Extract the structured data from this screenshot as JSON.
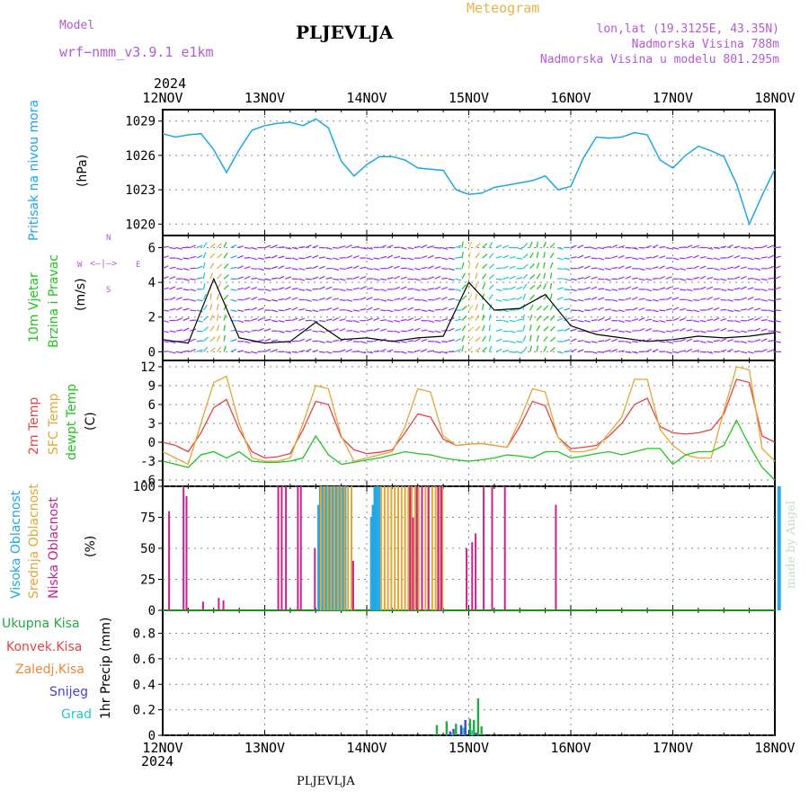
{
  "header": {
    "model_label": "Model",
    "model_name": "wrf−nmm_v3.9.1  e1km",
    "station": "PLJEVLJA",
    "meteogram": "Meteogram",
    "lonlat": "lon,lat (19.3125E, 43.35N)",
    "elev": "Nadmorska Visina 788m",
    "elev_model": "Nadmorska Visina u modelu 801.295m",
    "year_top": "2024",
    "year_bottom": "2024",
    "footer_station": "PLJEVLJA",
    "credit": "made by Angel"
  },
  "colors": {
    "pressure": "#1fa6e6",
    "temp2m": "#e44444",
    "sfc": "#e0a838",
    "dew": "#22c322",
    "high_cloud": "#22a6e6",
    "mid_cloud": "#e0a838",
    "low_cloud": "#c8228e",
    "precip_total": "#22aa44",
    "precip_conv": "#e44444",
    "precip_frz": "#ee8833",
    "snow": "#4444cc",
    "grad": "#22c8c8",
    "label_purple": "#b45ad6"
  },
  "axes": {
    "dates": [
      "12NOV",
      "13NOV",
      "14NOV",
      "15NOV",
      "16NOV",
      "17NOV",
      "18NOV"
    ]
  },
  "chart_data": [
    {
      "type": "line",
      "panel": "pressure",
      "ylabel": "Pritisak na nivou mora",
      "unit": "(hPa)",
      "yticks": [
        1020,
        1023,
        1026,
        1029
      ],
      "ylim": [
        1019,
        1030
      ],
      "x_hours": [
        0,
        3,
        6,
        9,
        12,
        15,
        18,
        21,
        24,
        27,
        30,
        33,
        36,
        39,
        42,
        45,
        48,
        51,
        54,
        57,
        60,
        63,
        66,
        69,
        72,
        75,
        78,
        81,
        84,
        87,
        90,
        93,
        96,
        99,
        102,
        105,
        108,
        111,
        114,
        117,
        120,
        123,
        126,
        129,
        132,
        135,
        138,
        141,
        144
      ],
      "values": [
        1027.9,
        1027.6,
        1027.8,
        1027.9,
        1026.5,
        1024.5,
        1026.5,
        1028.2,
        1028.6,
        1028.8,
        1028.9,
        1028.6,
        1029.2,
        1028.4,
        1025.5,
        1024.2,
        1025.2,
        1025.9,
        1025.9,
        1025.6,
        1024.9,
        1024.8,
        1024.7,
        1023.0,
        1022.6,
        1022.7,
        1023.2,
        1023.4,
        1023.6,
        1023.8,
        1024.2,
        1023.0,
        1023.3,
        1025.8,
        1027.6,
        1027.5,
        1027.6,
        1028.0,
        1027.8,
        1025.6,
        1024.9,
        1026.0,
        1026.8,
        1026.4,
        1025.9,
        1023.5,
        1020.0,
        1022.5,
        1024.8
      ]
    },
    {
      "type": "line",
      "panel": "wind",
      "ylabel": "10m Vjetar Brzina i Pravac",
      "unit": "(m/s)",
      "legend_compass": [
        "N",
        "W",
        "E",
        "S"
      ],
      "yticks": [
        0,
        2,
        4,
        6
      ],
      "ylim": [
        -0.5,
        6.7
      ],
      "x_hours": [
        0,
        6,
        12,
        18,
        24,
        30,
        36,
        42,
        48,
        54,
        60,
        66,
        72,
        78,
        84,
        90,
        96,
        102,
        108,
        114,
        120,
        126,
        132,
        138,
        144
      ],
      "values": [
        0.7,
        0.5,
        4.2,
        0.8,
        0.5,
        0.6,
        1.7,
        0.7,
        0.8,
        0.6,
        0.8,
        0.9,
        4.0,
        2.4,
        2.5,
        3.3,
        1.5,
        1.0,
        0.8,
        0.6,
        0.7,
        0.9,
        0.8,
        0.9,
        1.1
      ]
    },
    {
      "type": "line",
      "panel": "temperature",
      "ylabel": "2m Temp / SFC Temp / dewpt Temp",
      "unit": "(C)",
      "yticks": [
        -6,
        -3,
        0,
        3,
        6,
        9,
        12
      ],
      "ylim": [
        -7,
        13
      ],
      "x_hours": [
        0,
        3,
        6,
        9,
        12,
        15,
        18,
        21,
        24,
        27,
        30,
        33,
        36,
        39,
        42,
        45,
        48,
        51,
        54,
        57,
        60,
        63,
        66,
        69,
        72,
        75,
        78,
        81,
        84,
        87,
        90,
        93,
        96,
        99,
        102,
        105,
        108,
        111,
        114,
        117,
        120,
        123,
        126,
        129,
        132,
        135,
        138,
        141,
        144
      ],
      "series": [
        {
          "name": "2m Temp",
          "values": [
            0,
            -0.5,
            -1.5,
            1.5,
            5.5,
            6.8,
            2,
            -1.5,
            -2.5,
            -2.3,
            -1.8,
            2,
            6.5,
            6,
            0.8,
            -1.2,
            -1.8,
            -1.6,
            -1.2,
            1.5,
            4.5,
            4,
            0.5,
            -0.5,
            -0.3,
            -0.2,
            -0.5,
            -0.8,
            2.5,
            6.5,
            5.8,
            0.8,
            -1,
            -0.8,
            -0.5,
            1,
            3,
            6,
            7,
            2.5,
            1.5,
            1.3,
            1.5,
            2,
            4.5,
            10,
            9.5,
            1,
            0
          ]
        },
        {
          "name": "SFC Temp",
          "values": [
            -1.5,
            -2.5,
            -3.5,
            3,
            9.5,
            10.5,
            3,
            -2.5,
            -3,
            -3,
            -2.5,
            3,
            9,
            8.5,
            1,
            -3,
            -2.5,
            -2,
            -1.5,
            2.5,
            8.5,
            8,
            1,
            -0.5,
            -0.3,
            -0.2,
            -0.5,
            -0.8,
            3.5,
            8.5,
            8,
            0.8,
            -1.5,
            -1.5,
            -1,
            1.5,
            4,
            10,
            10,
            2,
            -0.5,
            -2,
            -2.5,
            -2.5,
            5,
            12,
            11.5,
            -1,
            -3
          ]
        },
        {
          "name": "dewpt Temp",
          "values": [
            -3,
            -3.5,
            -4,
            -2,
            -1.5,
            -2.5,
            -1.5,
            -3,
            -3.2,
            -3.2,
            -3,
            -2.5,
            1,
            -2,
            -3.5,
            -3.2,
            -2.8,
            -2.5,
            -2,
            -1.5,
            -1.8,
            -2,
            -2.5,
            -2.8,
            -3,
            -2.8,
            -2.5,
            -2,
            -2.2,
            -2.5,
            -1.5,
            -1.5,
            -2.5,
            -2.2,
            -1.8,
            -1.5,
            -2,
            -1.5,
            -1,
            -1,
            -3.5,
            -2,
            -1.5,
            -1.5,
            -0.5,
            3.5,
            -0.5,
            -4,
            -6
          ]
        }
      ]
    },
    {
      "type": "bar",
      "panel": "cloud",
      "ylabel": "Visoka Oblacnost / Srednja Oblacnost / Niska Oblacnost",
      "unit": "(%)",
      "yticks": [
        0,
        25,
        50,
        75,
        100
      ],
      "ylim": [
        0,
        100
      ],
      "series": [
        {
          "name": "Visoka Oblacnost",
          "x_hours": [
            36.6,
            37,
            37.4,
            37.8,
            38.2,
            38.6,
            39,
            39.4,
            39.8,
            40.2,
            40.6,
            41,
            41.4,
            41.8,
            42.2,
            42.6,
            43,
            49,
            49.4,
            49.8,
            50.2,
            50.6,
            51,
            144.8,
            145.2
          ],
          "values": [
            85,
            100,
            100,
            100,
            100,
            100,
            100,
            100,
            100,
            100,
            100,
            100,
            100,
            100,
            100,
            100,
            100,
            75,
            85,
            100,
            100,
            100,
            100,
            100,
            100
          ]
        },
        {
          "name": "Srednja Oblacnost",
          "x_hours": [
            37.2,
            38,
            38.8,
            39.6,
            40.4,
            41.2,
            42,
            42.8,
            43.6,
            44.4,
            51.4,
            52.2,
            53,
            53.8,
            54.6,
            55.4,
            56.2,
            57,
            57.8,
            58.6,
            59.4,
            60.2,
            61,
            61.8,
            62.6,
            63.4,
            64.2,
            65,
            65.8
          ],
          "values": [
            100,
            100,
            100,
            100,
            100,
            100,
            100,
            100,
            100,
            100,
            100,
            100,
            100,
            100,
            100,
            100,
            100,
            100,
            100,
            100,
            100,
            100,
            100,
            100,
            100,
            100,
            100,
            100,
            100
          ]
        },
        {
          "name": "Niska Oblacnost",
          "x_hours": [
            1.5,
            4.9,
            5.6,
            9.5,
            13.2,
            14.3,
            27.2,
            28,
            29,
            31.8,
            32.5,
            35.8,
            44.8,
            58.2,
            58.9,
            59.8,
            61,
            62.5,
            64.8,
            65.5,
            71.5,
            72.8,
            73.6,
            75.5,
            77.5,
            80.5,
            92.5
          ],
          "values": [
            80,
            100,
            92,
            7,
            10,
            8,
            100,
            100,
            100,
            100,
            100,
            50,
            40,
            100,
            75,
            100,
            100,
            100,
            100,
            100,
            50,
            55,
            62,
            100,
            100,
            100,
            85
          ]
        }
      ]
    },
    {
      "type": "bar",
      "panel": "precip",
      "ylabel": "1hr Precip (mm)",
      "legend": [
        "Ukupna Kisa",
        "Konvek.Kisa",
        "Zaledj.Kisa",
        "Snijeg",
        "Grad"
      ],
      "yticks": [
        0,
        0.2,
        0.4,
        0.6,
        0.8
      ],
      "ylim": [
        0,
        0.98
      ],
      "series": [
        {
          "name": "Ukupna Kisa",
          "x_hours": [
            64.5,
            66.8,
            69,
            72.3,
            73.2,
            74.2,
            75
          ],
          "values": [
            0.08,
            0.11,
            0.09,
            0.13,
            0.12,
            0.29,
            0.07
          ]
        },
        {
          "name": "Snijeg",
          "x_hours": [
            67.6,
            68.4,
            70.2,
            71.2,
            73.7
          ],
          "values": [
            0.03,
            0.05,
            0.08,
            0.12,
            0.02
          ]
        },
        {
          "name": "Grad",
          "x_hours": [
            68.1,
            70.7,
            72.8
          ],
          "values": [
            0.02,
            0.06,
            0.04
          ]
        }
      ]
    }
  ]
}
